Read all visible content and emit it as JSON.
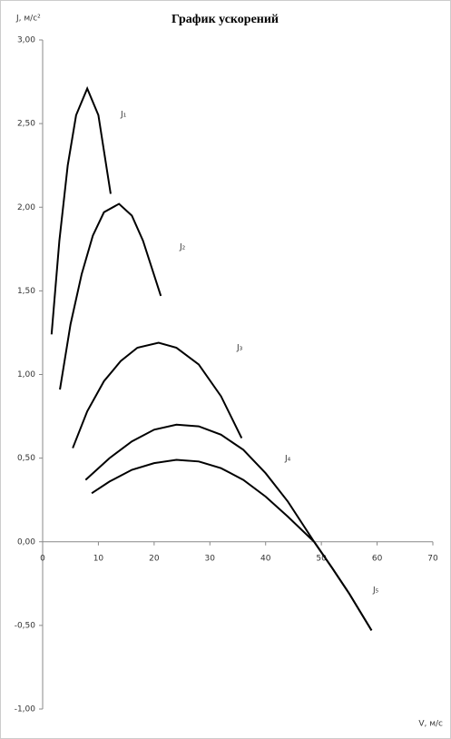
{
  "chart_data": {
    "type": "line",
    "title": "График ускорений",
    "y_label": "J, м/с²",
    "x_label": "V, м/с",
    "xlim": [
      0,
      70
    ],
    "xticks": [
      0,
      10,
      20,
      30,
      40,
      50,
      60,
      70
    ],
    "ylim": [
      -1,
      3
    ],
    "yticks": [
      {
        "value": 3,
        "label": "3,00"
      },
      {
        "value": 2.5,
        "label": "2,50"
      },
      {
        "value": 2,
        "label": "2,00"
      },
      {
        "value": 1.5,
        "label": "1,50"
      },
      {
        "value": 1,
        "label": "1,00"
      },
      {
        "value": 0.5,
        "label": "0,50"
      },
      {
        "value": 0,
        "label": "0,00"
      },
      {
        "value": -0.5,
        "label": "-0,50"
      },
      {
        "value": -1,
        "label": "-1,00"
      }
    ],
    "series": [
      {
        "name": "J₁",
        "color": "#000000",
        "x": [
          1.6,
          3,
          4.5,
          6,
          8,
          10,
          12.2
        ],
        "values": [
          1.24,
          1.8,
          2.25,
          2.55,
          2.71,
          2.55,
          2.08
        ]
      },
      {
        "name": "J₂",
        "color": "#000000",
        "x": [
          3.1,
          5,
          7,
          9,
          11,
          13.7,
          16,
          18,
          21.2
        ],
        "values": [
          0.91,
          1.3,
          1.6,
          1.83,
          1.97,
          2.02,
          1.95,
          1.8,
          1.47
        ]
      },
      {
        "name": "J₃",
        "color": "#000000",
        "x": [
          5.4,
          8,
          11,
          14,
          17,
          20.8,
          24,
          28,
          32,
          35.7
        ],
        "values": [
          0.56,
          0.78,
          0.96,
          1.08,
          1.16,
          1.19,
          1.16,
          1.06,
          0.87,
          0.62
        ]
      },
      {
        "name": "J₄",
        "color": "#000000",
        "x": [
          7.7,
          12,
          16,
          20,
          24,
          28,
          32,
          36,
          40,
          44,
          48.7,
          52,
          55,
          59
        ],
        "values": [
          0.37,
          0.5,
          0.6,
          0.67,
          0.7,
          0.69,
          0.64,
          0.55,
          0.41,
          0.24,
          0,
          -0.16,
          -0.31,
          -0.53
        ]
      },
      {
        "name": "J₅",
        "color": "#000000",
        "x": [
          8.8,
          12,
          16,
          20,
          24,
          28,
          32,
          36,
          40,
          44,
          48.7,
          52,
          55,
          59
        ],
        "values": [
          0.29,
          0.36,
          0.43,
          0.47,
          0.49,
          0.48,
          0.44,
          0.37,
          0.27,
          0.15,
          0,
          -0.16,
          -0.31,
          -0.53
        ]
      }
    ]
  }
}
